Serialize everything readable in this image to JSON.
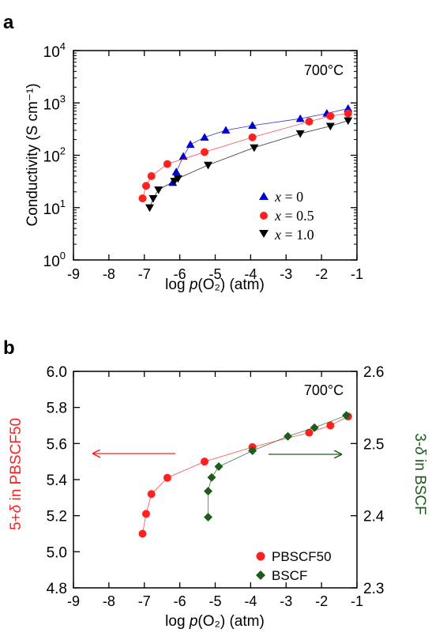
{
  "colors": {
    "blue": "#0000cc",
    "red": "#ff2020",
    "black": "#000000",
    "green": "#1e5c1e",
    "axis": "#000000"
  },
  "chart_data": [
    {
      "panel_label": "a",
      "type": "line",
      "annotation": "700°C",
      "xlabel_prefix": "log ",
      "xlabel_italic": "p",
      "xlabel_suffix": "(O₂) (atm)",
      "ylabel": "Conductivity (S cm⁻¹)",
      "xlim": [
        -9,
        -1
      ],
      "ylim": [
        1,
        10000
      ],
      "yscale": "log",
      "xticks": [
        -9,
        -8,
        -7,
        -6,
        -5,
        -4,
        -3,
        -2,
        -1
      ],
      "yticks": [
        1,
        10,
        100,
        1000,
        10000
      ],
      "ytick_labels": [
        {
          "base": "10",
          "exp": "0"
        },
        {
          "base": "10",
          "exp": "1"
        },
        {
          "base": "10",
          "exp": "2"
        },
        {
          "base": "10",
          "exp": "3"
        },
        {
          "base": "10",
          "exp": "4"
        }
      ],
      "legend_position": "bottom-right",
      "series": [
        {
          "name": "x = 0",
          "legend_var": "x",
          "legend_value": " = 0",
          "marker": "triangle-up",
          "color": "#0000cc",
          "x": [
            -6.2,
            -6.1,
            -5.9,
            -5.7,
            -5.3,
            -4.7,
            -3.95,
            -2.6,
            -1.85,
            -1.25
          ],
          "y": [
            30,
            48,
            95,
            160,
            220,
            300,
            370,
            500,
            630,
            780
          ]
        },
        {
          "name": "x = 0.5",
          "legend_var": "x",
          "legend_value": " = 0.5",
          "marker": "circle",
          "color": "#ff2020",
          "x": [
            -7.05,
            -6.95,
            -6.8,
            -6.35,
            -5.3,
            -3.95,
            -2.35,
            -1.75,
            -1.25
          ],
          "y": [
            15,
            26,
            40,
            68,
            115,
            220,
            440,
            560,
            630
          ]
        },
        {
          "name": "x = 1.0",
          "legend_var": "x",
          "legend_value": " = 1.0",
          "marker": "triangle-down",
          "color": "#000000",
          "x": [
            -6.85,
            -6.75,
            -6.6,
            -6.15,
            -6.05,
            -5.2,
            -3.9,
            -2.6,
            -1.75,
            -1.25
          ],
          "y": [
            10,
            15,
            22,
            32,
            36,
            65,
            140,
            260,
            360,
            460
          ]
        }
      ]
    },
    {
      "panel_label": "b",
      "type": "line",
      "annotation": "700°C",
      "xlabel_prefix": "log ",
      "xlabel_italic": "p",
      "xlabel_suffix": "(O₂) (atm)",
      "ylabel_left_prefix": "5+",
      "ylabel_left_delta": "δ",
      "ylabel_left_suffix": " in PBSCF50",
      "ylabel_right_prefix": "3-",
      "ylabel_right_delta": "δ",
      "ylabel_right_suffix": " in BSCF",
      "xlim": [
        -9,
        -1
      ],
      "ylim_left": [
        4.8,
        6.0
      ],
      "ylim_right": [
        2.3,
        2.6
      ],
      "xticks": [
        -9,
        -8,
        -7,
        -6,
        -5,
        -4,
        -3,
        -2,
        -1
      ],
      "yticks_left": [
        "4.8",
        "5.0",
        "5.2",
        "5.4",
        "5.6",
        "5.8",
        "6.0"
      ],
      "yticks_right": [
        "2.3",
        "2.4",
        "2.5",
        "2.6"
      ],
      "legend_position": "bottom-right",
      "series": [
        {
          "name": "PBSCF50",
          "axis": "left",
          "marker": "circle",
          "color": "#ff2020",
          "x": [
            -7.05,
            -6.95,
            -6.8,
            -6.35,
            -5.3,
            -3.95,
            -2.35,
            -1.75,
            -1.25
          ],
          "y": [
            5.1,
            5.21,
            5.32,
            5.41,
            5.5,
            5.58,
            5.66,
            5.7,
            5.75
          ]
        },
        {
          "name": "BSCF",
          "axis": "right",
          "marker": "diamond",
          "color": "#1e5c1e",
          "x": [
            -5.2,
            -5.2,
            -5.1,
            -4.9,
            -3.95,
            -2.95,
            -2.2,
            -1.3
          ],
          "y": [
            2.398,
            2.434,
            2.453,
            2.468,
            2.49,
            2.51,
            2.522,
            2.539
          ]
        }
      ]
    }
  ]
}
